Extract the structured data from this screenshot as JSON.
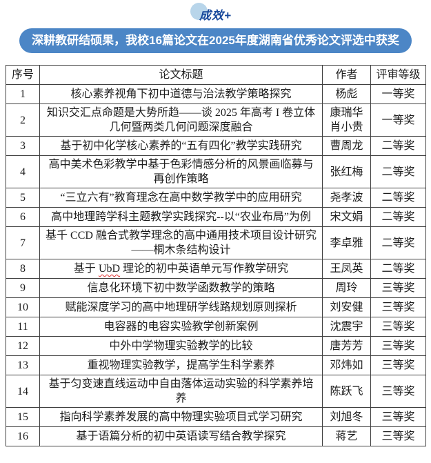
{
  "header": {
    "section_tag": "成效+",
    "banner_title": "深耕教研结硕果，我校16篇论文在2025年度湖南省优秀论文评选中获奖"
  },
  "table": {
    "columns": [
      "序号",
      "论文标题",
      "作者",
      "评审等级"
    ],
    "spell_error_terms": [
      "UbD"
    ],
    "rows": [
      {
        "no": "1",
        "title": "核心素养视角下初中道德与治法教学策略探究",
        "author": "杨彪",
        "grade": "一等奖"
      },
      {
        "no": "2",
        "title": "知识交汇点命题是大势所趋——谈 2025 年高考 I 卷立体几何暨两类几何问题深度融合",
        "author": "康瑞华\n肖小贵",
        "grade": "一等奖"
      },
      {
        "no": "3",
        "title": "基于初中化学核心素养的“五有四化”教学实践研究",
        "author": "曹周龙",
        "grade": "二等奖"
      },
      {
        "no": "4",
        "title": "高中美术色彩教学中基于色彩情感分析的风景画临募与再创作策略",
        "author": "张红梅",
        "grade": "二等奖"
      },
      {
        "no": "5",
        "title": "“三立六有”教育理念在高中数学教学中的应用研究",
        "author": "尧孝波",
        "grade": "二等奖"
      },
      {
        "no": "6",
        "title": "高中地理跨学科主题教学实践探究--以“农业布局”为例",
        "author": "宋文娟",
        "grade": "二等奖"
      },
      {
        "no": "7",
        "title": "基千 CCD 融合式教学理念的高中通用技术项目设计研究——桐木条结构设计",
        "author": "李卓雅",
        "grade": "二等奖"
      },
      {
        "no": "8",
        "title": "基于 UbD 理论的初中英语单元写作教学研究",
        "author": "王凤英",
        "grade": "二等奖"
      },
      {
        "no": "9",
        "title": "信息化环境下初中数学函数教学的策略",
        "author": "周玲",
        "grade": "三等奖"
      },
      {
        "no": "10",
        "title": "赋能深度学习的高中地理研学线路规划原则探析",
        "author": "刘安健",
        "grade": "三等奖"
      },
      {
        "no": "11",
        "title": "电容器的电容实验教学创新案例",
        "author": "沈震宇",
        "grade": "三等奖"
      },
      {
        "no": "12",
        "title": "中外中学物理实验教学的比较",
        "author": "唐芳芳",
        "grade": "三等奖"
      },
      {
        "no": "13",
        "title": "重视物理实验教学，提高学生科学素养",
        "author": "邓炜如",
        "grade": "三等奖"
      },
      {
        "no": "14",
        "title": "基于匀变速直线运动中自由落体运动实验的科学素养培养",
        "author": "陈跃飞",
        "grade": "三等奖"
      },
      {
        "no": "15",
        "title": "指向科学素养发展的高中物理实验项目式学习研究",
        "author": "刘旭冬",
        "grade": "三等奖"
      },
      {
        "no": "16",
        "title": "基于语篇分析的初中英语读写结合教学探究",
        "author": "蒋艺",
        "grade": "三等奖"
      }
    ]
  },
  "colors": {
    "banner_bg": "#4c86c6",
    "tag_text": "#17489b",
    "tag_circle": "#b8d5ea",
    "table_border": "#3f3f3f",
    "text": "#1d1d1d"
  }
}
